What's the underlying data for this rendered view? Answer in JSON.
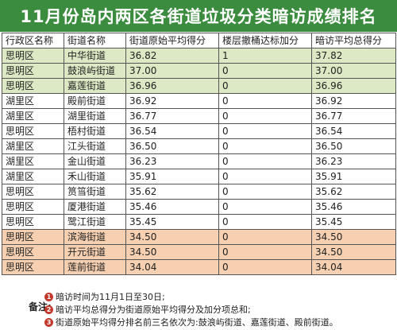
{
  "title": "11月份岛内两区各街道垃圾分类暗访成绩排名",
  "table": {
    "headers": [
      "行政区名称",
      "街道名称",
      "街道原始平均得分",
      "楼层撤桶达标加分",
      "暗访平均总得分"
    ],
    "rows": [
      {
        "district": "思明区",
        "street": "中华街道",
        "raw": "36.82",
        "bonus": "1",
        "total": "37.82",
        "group": "top"
      },
      {
        "district": "思明区",
        "street": "鼓浪屿街道",
        "raw": "37.00",
        "bonus": "0",
        "total": "37.00",
        "group": "top"
      },
      {
        "district": "思明区",
        "street": "嘉莲街道",
        "raw": "36.96",
        "bonus": "0",
        "total": "36.96",
        "group": "top"
      },
      {
        "district": "湖里区",
        "street": "殿前街道",
        "raw": "36.92",
        "bonus": "0",
        "total": "36.92",
        "group": "mid"
      },
      {
        "district": "湖里区",
        "street": "湖里街道",
        "raw": "36.77",
        "bonus": "0",
        "total": "36.77",
        "group": "mid"
      },
      {
        "district": "思明区",
        "street": "梧村街道",
        "raw": "36.54",
        "bonus": "0",
        "total": "36.54",
        "group": "mid"
      },
      {
        "district": "湖里区",
        "street": "江头街道",
        "raw": "36.50",
        "bonus": "0",
        "total": "36.50",
        "group": "mid"
      },
      {
        "district": "湖里区",
        "street": "金山街道",
        "raw": "36.23",
        "bonus": "0",
        "total": "36.23",
        "group": "mid"
      },
      {
        "district": "湖里区",
        "street": "禾山街道",
        "raw": "35.91",
        "bonus": "0",
        "total": "35.91",
        "group": "mid"
      },
      {
        "district": "思明区",
        "street": "筼筜街道",
        "raw": "35.62",
        "bonus": "0",
        "total": "35.62",
        "group": "mid"
      },
      {
        "district": "思明区",
        "street": "厦港街道",
        "raw": "35.46",
        "bonus": "0",
        "total": "35.46",
        "group": "mid"
      },
      {
        "district": "思明区",
        "street": "鹭江街道",
        "raw": "35.45",
        "bonus": "0",
        "total": "35.45",
        "group": "mid"
      },
      {
        "district": "思明区",
        "street": "滨海街道",
        "raw": "34.50",
        "bonus": "0",
        "total": "34.50",
        "group": "bottom"
      },
      {
        "district": "思明区",
        "street": "开元街道",
        "raw": "34.50",
        "bonus": "0",
        "total": "34.50",
        "group": "bottom"
      },
      {
        "district": "思明区",
        "street": "莲前街道",
        "raw": "34.04",
        "bonus": "0",
        "total": "34.04",
        "group": "bottom"
      }
    ]
  },
  "notes": {
    "label": "备注:",
    "items": [
      {
        "num": "1",
        "text": "暗访时间为11月1日至30日;"
      },
      {
        "num": "2",
        "text": "暗访平均总得分为街道原始平均得分及加分项总和;"
      },
      {
        "num": "3",
        "text": "街道原始平均得分排名前三名依次为:鼓浪屿街道、嘉莲街道、殿前街道。"
      }
    ]
  },
  "colors": {
    "title_bg": "#3b8c3f",
    "top_rows": "#dce9c4",
    "bottom_rows": "#f6d0b1",
    "note_number": "#c0392b"
  }
}
